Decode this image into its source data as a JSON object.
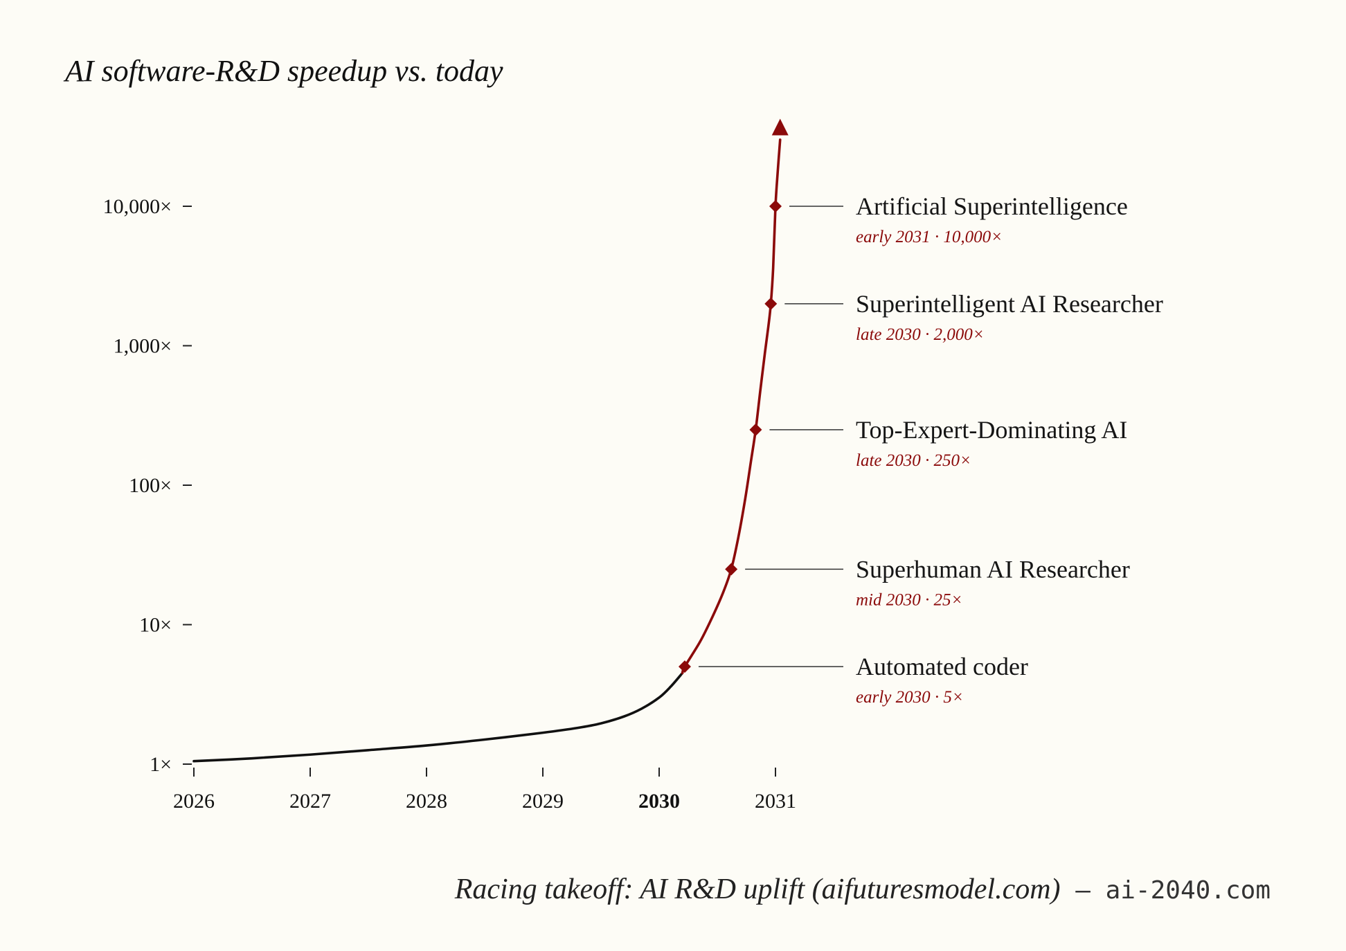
{
  "colors": {
    "background": "#fdfcf6",
    "baseline_curve": "#111111",
    "takeoff_curve": "#8b0a0a",
    "leader_line": "#333333"
  },
  "chart_data": {
    "type": "line",
    "title": "AI software-R&D speedup vs. today",
    "y_scale": "log",
    "ylim": [
      1,
      40000
    ],
    "xlim": [
      2026,
      2031
    ],
    "y_ticks": [
      {
        "value": 1,
        "label": "1×"
      },
      {
        "value": 10,
        "label": "10×"
      },
      {
        "value": 100,
        "label": "100×"
      },
      {
        "value": 1000,
        "label": "1,000×"
      },
      {
        "value": 10000,
        "label": "10,000×"
      }
    ],
    "x_ticks": [
      {
        "value": 2026,
        "label": "2026",
        "bold": false
      },
      {
        "value": 2027,
        "label": "2027",
        "bold": false
      },
      {
        "value": 2028,
        "label": "2028",
        "bold": false
      },
      {
        "value": 2029,
        "label": "2029",
        "bold": false
      },
      {
        "value": 2030,
        "label": "2030",
        "bold": true
      },
      {
        "value": 2031,
        "label": "2031",
        "bold": false
      }
    ],
    "series": [
      {
        "segment": "pre-automation",
        "color": "#111111",
        "x": [
          2026.0,
          2026.5,
          2027.0,
          2027.5,
          2028.0,
          2028.5,
          2029.0,
          2029.3,
          2029.5,
          2029.7,
          2029.85,
          2030.0,
          2030.1,
          2030.2
        ],
        "y": [
          1.05,
          1.1,
          1.17,
          1.26,
          1.36,
          1.5,
          1.68,
          1.82,
          1.96,
          2.2,
          2.5,
          3.0,
          3.6,
          4.5
        ]
      },
      {
        "segment": "takeoff",
        "color": "#8b0a0a",
        "x": [
          2030.22,
          2030.35,
          2030.45,
          2030.55,
          2030.62,
          2030.68,
          2030.74,
          2030.79,
          2030.83,
          2030.87,
          2030.91,
          2030.94,
          2030.96,
          2030.98,
          2031.0,
          2031.02,
          2031.04
        ],
        "y": [
          5,
          7.5,
          11,
          17,
          25,
          42,
          80,
          150,
          250,
          480,
          900,
          1400,
          2000,
          3600,
          10000,
          18000,
          30000
        ]
      }
    ],
    "milestones": [
      {
        "name": "Automated coder",
        "detail": "early 2030 · 5×",
        "x": 2030.22,
        "y": 5
      },
      {
        "name": "Superhuman AI Researcher",
        "detail": "mid 2030 · 25×",
        "x": 2030.62,
        "y": 25
      },
      {
        "name": "Top-Expert-Dominating AI",
        "detail": "late 2030 · 250×",
        "x": 2030.83,
        "y": 250
      },
      {
        "name": "Superintelligent AI Researcher",
        "detail": "late 2030 · 2,000×",
        "x": 2030.96,
        "y": 2000
      },
      {
        "name": "Artificial Superintelligence",
        "detail": "early 2031 · 10,000×",
        "x": 2031.0,
        "y": 10000
      }
    ],
    "arrow": {
      "x": 2031.04,
      "y": 37000
    }
  },
  "footer": {
    "source": "Racing takeoff: AI R&D uplift (aifuturesmodel.com)",
    "separator": " – ",
    "site": "ai-2040.com"
  }
}
